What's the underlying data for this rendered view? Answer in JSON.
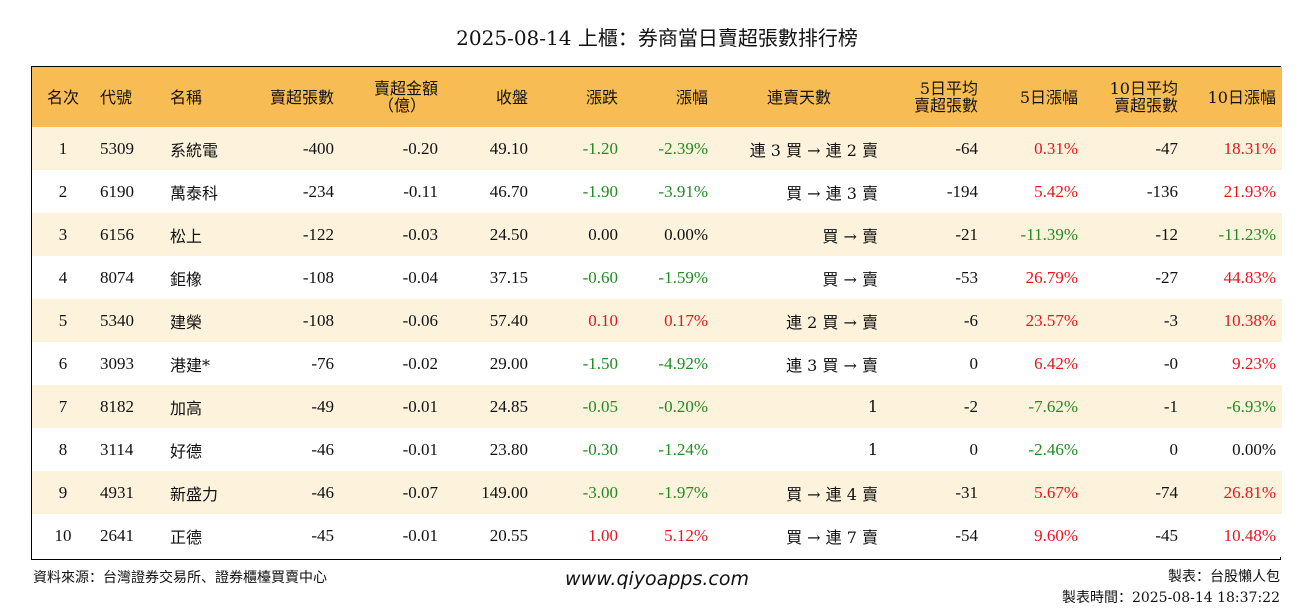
{
  "title": "2025-08-14 上櫃：券商當日賣超張數排行榜",
  "headers": {
    "rank": "名次",
    "code": "代號",
    "name": "名稱",
    "net_sell_lots": "賣超張數",
    "net_sell_amount_l1": "賣超金額",
    "net_sell_amount_l2": "（億）",
    "close": "收盤",
    "change": "漲跌",
    "pct": "漲幅",
    "streak": "連賣天數",
    "avg5_l1": "5日平均",
    "avg5_l2": "賣超張數",
    "pct5": "5日漲幅",
    "avg10_l1": "10日平均",
    "avg10_l2": "賣超張數",
    "pct10": "10日漲幅"
  },
  "rows": [
    {
      "rank": "1",
      "code": "5309",
      "name": "系統電",
      "lots": "-400",
      "amount": "-0.20",
      "close": "49.10",
      "change": "-1.20",
      "change_dir": "down",
      "pct": "-2.39%",
      "pct_dir": "down",
      "streak": "連 3 買 → 連 2 賣",
      "avg5": "-64",
      "pct5": "0.31%",
      "pct5_dir": "up",
      "avg10": "-47",
      "pct10": "18.31%",
      "pct10_dir": "up"
    },
    {
      "rank": "2",
      "code": "6190",
      "name": "萬泰科",
      "lots": "-234",
      "amount": "-0.11",
      "close": "46.70",
      "change": "-1.90",
      "change_dir": "down",
      "pct": "-3.91%",
      "pct_dir": "down",
      "streak": "買 → 連 3 賣",
      "avg5": "-194",
      "pct5": "5.42%",
      "pct5_dir": "up",
      "avg10": "-136",
      "pct10": "21.93%",
      "pct10_dir": "up"
    },
    {
      "rank": "3",
      "code": "6156",
      "name": "松上",
      "lots": "-122",
      "amount": "-0.03",
      "close": "24.50",
      "change": "0.00",
      "change_dir": "flat",
      "pct": "0.00%",
      "pct_dir": "flat",
      "streak": "買 → 賣",
      "avg5": "-21",
      "pct5": "-11.39%",
      "pct5_dir": "down",
      "avg10": "-12",
      "pct10": "-11.23%",
      "pct10_dir": "down"
    },
    {
      "rank": "4",
      "code": "8074",
      "name": "鉅橡",
      "lots": "-108",
      "amount": "-0.04",
      "close": "37.15",
      "change": "-0.60",
      "change_dir": "down",
      "pct": "-1.59%",
      "pct_dir": "down",
      "streak": "買 → 賣",
      "avg5": "-53",
      "pct5": "26.79%",
      "pct5_dir": "up",
      "avg10": "-27",
      "pct10": "44.83%",
      "pct10_dir": "up"
    },
    {
      "rank": "5",
      "code": "5340",
      "name": "建榮",
      "lots": "-108",
      "amount": "-0.06",
      "close": "57.40",
      "change": "0.10",
      "change_dir": "up",
      "pct": "0.17%",
      "pct_dir": "up",
      "streak": "連 2 買 → 賣",
      "avg5": "-6",
      "pct5": "23.57%",
      "pct5_dir": "up",
      "avg10": "-3",
      "pct10": "10.38%",
      "pct10_dir": "up"
    },
    {
      "rank": "6",
      "code": "3093",
      "name": "港建*",
      "lots": "-76",
      "amount": "-0.02",
      "close": "29.00",
      "change": "-1.50",
      "change_dir": "down",
      "pct": "-4.92%",
      "pct_dir": "down",
      "streak": "連 3 買 → 賣",
      "avg5": "0",
      "pct5": "6.42%",
      "pct5_dir": "up",
      "avg10": "-0",
      "pct10": "9.23%",
      "pct10_dir": "up"
    },
    {
      "rank": "7",
      "code": "8182",
      "name": "加高",
      "lots": "-49",
      "amount": "-0.01",
      "close": "24.85",
      "change": "-0.05",
      "change_dir": "down",
      "pct": "-0.20%",
      "pct_dir": "down",
      "streak": "1",
      "avg5": "-2",
      "pct5": "-7.62%",
      "pct5_dir": "down",
      "avg10": "-1",
      "pct10": "-6.93%",
      "pct10_dir": "down"
    },
    {
      "rank": "8",
      "code": "3114",
      "name": "好德",
      "lots": "-46",
      "amount": "-0.01",
      "close": "23.80",
      "change": "-0.30",
      "change_dir": "down",
      "pct": "-1.24%",
      "pct_dir": "down",
      "streak": "1",
      "avg5": "0",
      "pct5": "-2.46%",
      "pct5_dir": "down",
      "avg10": "0",
      "pct10": "0.00%",
      "pct10_dir": "flat"
    },
    {
      "rank": "9",
      "code": "4931",
      "name": "新盛力",
      "lots": "-46",
      "amount": "-0.07",
      "close": "149.00",
      "change": "-3.00",
      "change_dir": "down",
      "pct": "-1.97%",
      "pct_dir": "down",
      "streak": "買 → 連 4 賣",
      "avg5": "-31",
      "pct5": "5.67%",
      "pct5_dir": "up",
      "avg10": "-74",
      "pct10": "26.81%",
      "pct10_dir": "up"
    },
    {
      "rank": "10",
      "code": "2641",
      "name": "正德",
      "lots": "-45",
      "amount": "-0.01",
      "close": "20.55",
      "change": "1.00",
      "change_dir": "up",
      "pct": "5.12%",
      "pct_dir": "up",
      "streak": "買 → 連 7 賣",
      "avg5": "-54",
      "pct5": "9.60%",
      "pct5_dir": "up",
      "avg10": "-45",
      "pct10": "10.48%",
      "pct10_dir": "up"
    }
  ],
  "colors": {
    "up": "#e8141b",
    "down": "#1e8c1e",
    "flat": "#111111",
    "header_bg": "#f7bd54",
    "stripe_bg": "#fdf2dc"
  },
  "footer": {
    "source": "資料來源：台灣證券交易所、證券櫃檯買賣中心",
    "website": "www.qiyoapps.com",
    "maker": "製表：台股懶人包",
    "time": "製表時間：2025-08-14 18:37:22"
  }
}
